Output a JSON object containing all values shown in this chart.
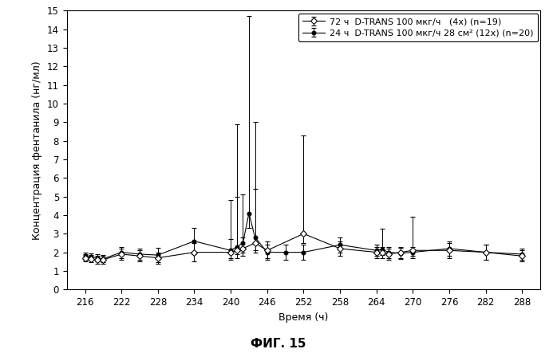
{
  "title": "ФИГ. 15",
  "xlabel": "Время (ч)",
  "ylabel": "Концентрация фентанила (нг/мл)",
  "xlim": [
    213,
    291
  ],
  "ylim": [
    0,
    15
  ],
  "xticks": [
    216,
    222,
    228,
    234,
    240,
    246,
    252,
    258,
    264,
    270,
    276,
    282,
    288
  ],
  "yticks": [
    0,
    1,
    2,
    3,
    4,
    5,
    6,
    7,
    8,
    9,
    10,
    11,
    12,
    13,
    14,
    15
  ],
  "legend1": "72 ч  D-TRANS 100 мкг/ч   (4x) (n=19)",
  "legend2": "24 ч  D-TRANS 100 мкг/ч 28 см² (12x) (n=20)",
  "series1": {
    "x": [
      216,
      217,
      218,
      219,
      222,
      225,
      228,
      234,
      240,
      241,
      242,
      244,
      246,
      252,
      258,
      264,
      265,
      266,
      268,
      270,
      276,
      282,
      288
    ],
    "y": [
      1.7,
      1.65,
      1.6,
      1.6,
      1.9,
      1.8,
      1.7,
      2.0,
      2.0,
      2.1,
      2.2,
      2.5,
      2.1,
      3.0,
      2.2,
      2.0,
      2.0,
      1.9,
      2.0,
      2.1,
      2.1,
      2.0,
      1.8
    ],
    "yerr_lo": [
      0.2,
      0.2,
      0.2,
      0.2,
      0.3,
      0.3,
      0.3,
      0.5,
      0.4,
      0.4,
      0.4,
      0.5,
      0.4,
      0.5,
      0.4,
      0.3,
      0.3,
      0.3,
      0.3,
      0.3,
      0.4,
      0.4,
      0.3
    ],
    "yerr_hi": [
      0.2,
      0.2,
      0.2,
      0.2,
      0.3,
      0.3,
      0.3,
      0.5,
      0.7,
      6.8,
      0.6,
      6.5,
      0.5,
      5.3,
      0.4,
      0.3,
      0.3,
      0.3,
      0.3,
      1.8,
      0.4,
      0.4,
      0.3
    ]
  },
  "series2": {
    "x": [
      216,
      217,
      218,
      219,
      222,
      225,
      228,
      234,
      240,
      241,
      242,
      243,
      244,
      246,
      249,
      252,
      258,
      264,
      265,
      266,
      268,
      270,
      276,
      282,
      288
    ],
    "y": [
      1.8,
      1.75,
      1.7,
      1.65,
      2.0,
      1.9,
      1.85,
      2.6,
      2.1,
      2.3,
      2.5,
      4.1,
      2.8,
      2.0,
      2.0,
      2.0,
      2.4,
      2.1,
      2.15,
      2.0,
      1.95,
      2.0,
      2.2,
      2.0,
      1.9
    ],
    "yerr_lo": [
      0.2,
      0.2,
      0.2,
      0.2,
      0.3,
      0.3,
      0.4,
      0.7,
      0.4,
      0.4,
      0.5,
      0.8,
      0.7,
      0.4,
      0.4,
      0.4,
      0.4,
      0.3,
      0.3,
      0.3,
      0.3,
      0.3,
      0.4,
      0.4,
      0.3
    ],
    "yerr_hi": [
      0.2,
      0.2,
      0.2,
      0.2,
      0.3,
      0.3,
      0.4,
      0.7,
      2.7,
      2.7,
      2.6,
      10.6,
      2.6,
      0.4,
      0.4,
      0.4,
      0.4,
      0.3,
      1.1,
      0.3,
      0.3,
      0.3,
      0.4,
      0.4,
      0.3
    ]
  },
  "bg_color": "#ffffff",
  "fontsize_labels": 9,
  "fontsize_ticks": 8.5,
  "fontsize_title": 11,
  "fontsize_legend": 8
}
